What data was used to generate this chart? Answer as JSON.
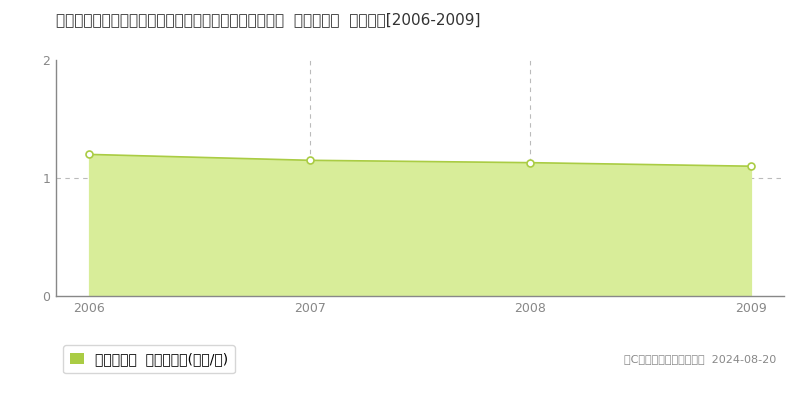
{
  "title": "和歌山県伊都郡かつらぎ町大字花園新子字上墓内７４番  基準地価格  地価推移[2006-2009]",
  "years": [
    2006,
    2007,
    2008,
    2009
  ],
  "values": [
    1.2,
    1.15,
    1.13,
    1.1
  ],
  "line_color": "#aacc44",
  "fill_color": "#d8ed99",
  "marker_color": "#ffffff",
  "marker_edge_color": "#aacc44",
  "ylim": [
    0,
    2
  ],
  "yticks": [
    0,
    1,
    2
  ],
  "xlim_min": 2005.85,
  "xlim_max": 2009.15,
  "xticks": [
    2006,
    2007,
    2008,
    2009
  ],
  "grid_color": "#bbbbbb",
  "dashed_line_y": 1.0,
  "legend_label": "基準地価格  平均坪単価(万円/坪)",
  "copyright_text": "（C）土地価格ドットコム  2024-08-20",
  "bg_color": "#ffffff",
  "title_fontsize": 11,
  "label_fontsize": 10,
  "tick_fontsize": 9,
  "tick_color": "#888888"
}
